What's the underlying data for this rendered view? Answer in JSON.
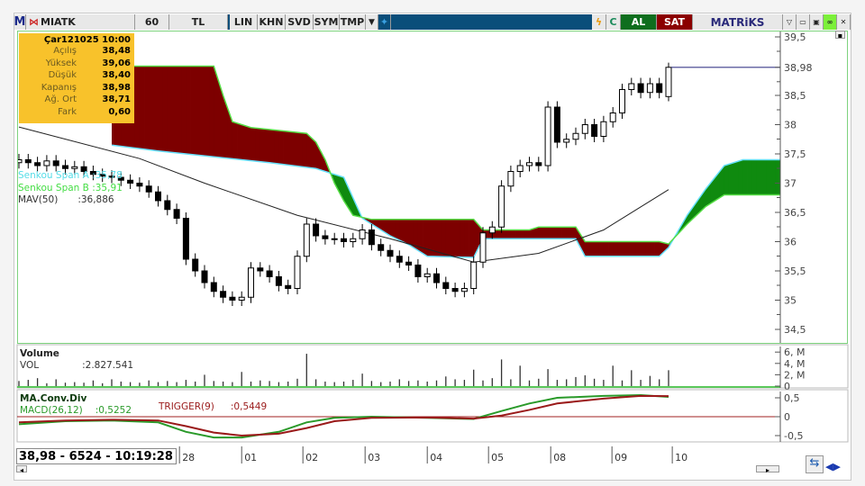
{
  "toolbar": {
    "logo": "M",
    "symbol": "MIATK",
    "period": "60",
    "currency": "TL",
    "buttons": [
      "LIN",
      "KHN",
      "SVD",
      "SYM",
      "TMP"
    ],
    "buy": "AL",
    "sell": "SAT",
    "brand": "MATRiKS",
    "colors": {
      "bar": "#0a4e7a",
      "buy": "#0e6e1e",
      "sell": "#8b0000"
    }
  },
  "info": {
    "date": "Çar121025 10:00",
    "rows": [
      {
        "k": "Açılış",
        "v": "38,48"
      },
      {
        "k": "Yüksek",
        "v": "39,06"
      },
      {
        "k": "Düşük",
        "v": "38,40"
      },
      {
        "k": "Kapanış",
        "v": "38,98"
      },
      {
        "k": "Ağ. Ort",
        "v": "38,71"
      },
      {
        "k": "Fark",
        "v": "0,60"
      }
    ]
  },
  "legend": {
    "span_a": "Senkou Span A",
    "span_a_val": ":35,78",
    "span_b": "Senkou Span B",
    "span_b_val": ":35,91",
    "mav": "MAV(50)",
    "mav_val": ":36,886"
  },
  "volume": {
    "title": "Volume",
    "label": "VOL",
    "value": ":2.827.541"
  },
  "macd": {
    "title": "MA.Conv.Div",
    "label": "MACD(26,12)",
    "value": ":0,5252",
    "trigger": "TRIGGER(9)",
    "trigger_val": ":0,5449"
  },
  "status": "38,98 - 6524 - 10:19:28",
  "chart_data": [
    {
      "type": "candlestick",
      "ylim": [
        34.3,
        39.65
      ],
      "y_ticks": [
        "39,5",
        "38,98",
        "38,5",
        "38",
        "37,5",
        "37",
        "36,5",
        "36",
        "35,5",
        "35",
        "34,5"
      ],
      "y_tick_values": [
        39.5,
        38.98,
        38.5,
        38,
        37.5,
        37,
        36.5,
        36,
        35.5,
        35,
        34.5
      ],
      "last_price": 38.98,
      "x_ticks": [
        {
          "label": "28",
          "index": 17.3
        },
        {
          "label": "01",
          "index": 24
        },
        {
          "label": "02",
          "index": 30.6
        },
        {
          "label": "03",
          "index": 37.3
        },
        {
          "label": "04",
          "index": 44
        },
        {
          "label": "05",
          "index": 50.6
        },
        {
          "label": "08",
          "index": 57.3
        },
        {
          "label": "09",
          "index": 63.9
        },
        {
          "label": "10",
          "index": 70.4
        }
      ],
      "open": [
        37.35,
        37.4,
        37.35,
        37.3,
        37.38,
        37.3,
        37.25,
        37.28,
        37.2,
        37.15,
        37.12,
        37.1,
        37.05,
        37.0,
        36.95,
        36.85,
        36.7,
        36.55,
        36.4,
        35.7,
        35.5,
        35.3,
        35.15,
        35.05,
        35.0,
        35.05,
        35.55,
        35.5,
        35.4,
        35.25,
        35.2,
        35.75,
        36.3,
        36.1,
        36.05,
        36.05,
        36.0,
        36.05,
        36.2,
        35.95,
        35.85,
        35.75,
        35.65,
        35.6,
        35.4,
        35.45,
        35.3,
        35.2,
        35.15,
        35.2,
        35.65,
        36.15,
        36.25,
        36.95,
        37.2,
        37.3,
        37.35,
        37.3,
        38.3,
        37.7,
        37.75,
        37.85,
        38.0,
        37.8,
        38.05,
        38.2,
        38.6,
        38.7,
        38.55,
        38.7,
        38.48
      ],
      "high": [
        37.5,
        37.5,
        37.45,
        37.48,
        37.48,
        37.4,
        37.38,
        37.38,
        37.3,
        37.25,
        37.22,
        37.2,
        37.15,
        37.1,
        37.05,
        36.95,
        36.8,
        36.65,
        36.5,
        35.8,
        35.6,
        35.4,
        35.25,
        35.15,
        35.15,
        35.65,
        35.65,
        35.6,
        35.5,
        35.35,
        35.85,
        36.4,
        36.4,
        36.2,
        36.15,
        36.15,
        36.15,
        36.3,
        36.3,
        36.05,
        35.95,
        35.85,
        35.75,
        35.7,
        35.55,
        35.55,
        35.4,
        35.3,
        35.3,
        35.75,
        36.25,
        36.35,
        37.05,
        37.3,
        37.4,
        37.45,
        37.45,
        38.4,
        38.4,
        37.85,
        37.95,
        38.1,
        38.1,
        38.15,
        38.3,
        38.7,
        38.8,
        38.8,
        38.8,
        38.8,
        39.06
      ],
      "low": [
        37.25,
        37.25,
        37.2,
        37.2,
        37.2,
        37.15,
        37.15,
        37.1,
        37.05,
        37.02,
        37.0,
        36.95,
        36.9,
        36.85,
        36.75,
        36.6,
        36.45,
        36.3,
        35.6,
        35.4,
        35.2,
        35.05,
        34.95,
        34.9,
        34.9,
        34.95,
        35.4,
        35.3,
        35.15,
        35.1,
        35.1,
        35.65,
        36.0,
        35.95,
        35.95,
        35.9,
        35.9,
        35.95,
        35.85,
        35.75,
        35.65,
        35.55,
        35.5,
        35.3,
        35.3,
        35.2,
        35.1,
        35.05,
        35.05,
        35.1,
        35.55,
        36.05,
        36.15,
        36.85,
        37.1,
        37.2,
        37.2,
        37.2,
        37.6,
        37.6,
        37.65,
        37.75,
        37.7,
        37.7,
        37.95,
        38.1,
        38.5,
        38.45,
        38.45,
        38.45,
        38.4
      ],
      "close": [
        37.4,
        37.35,
        37.3,
        37.38,
        37.3,
        37.25,
        37.28,
        37.2,
        37.15,
        37.12,
        37.1,
        37.05,
        37.0,
        36.95,
        36.85,
        36.7,
        36.55,
        36.4,
        35.7,
        35.5,
        35.3,
        35.15,
        35.05,
        35.0,
        35.05,
        35.55,
        35.5,
        35.4,
        35.25,
        35.2,
        35.75,
        36.3,
        36.1,
        36.05,
        36.05,
        36.0,
        36.05,
        36.2,
        35.95,
        35.85,
        35.75,
        35.65,
        35.6,
        35.4,
        35.45,
        35.3,
        35.2,
        35.15,
        35.2,
        35.65,
        36.15,
        36.25,
        36.95,
        37.2,
        37.3,
        37.35,
        37.3,
        38.3,
        37.7,
        37.75,
        37.85,
        38.0,
        37.8,
        38.05,
        38.2,
        38.6,
        38.7,
        38.55,
        38.7,
        38.55,
        38.98
      ],
      "senkou_span_a": [
        [
          10,
          37.65
        ],
        [
          15,
          37.55
        ],
        [
          21,
          37.45
        ],
        [
          27,
          37.35
        ],
        [
          32,
          37.25
        ],
        [
          35,
          37.1
        ],
        [
          37,
          36.4
        ],
        [
          40,
          36.1
        ],
        [
          42,
          35.95
        ],
        [
          44,
          35.75
        ],
        [
          49,
          35.73
        ],
        [
          50,
          36.05
        ],
        [
          60,
          36.05
        ],
        [
          61,
          35.75
        ],
        [
          69,
          35.75
        ],
        [
          70,
          35.9
        ],
        [
          72,
          36.45
        ],
        [
          74,
          36.9
        ],
        [
          76,
          37.3
        ],
        [
          78,
          37.4
        ],
        [
          83,
          37.4
        ]
      ],
      "senkou_span_b": [
        [
          10,
          39.0
        ],
        [
          21,
          39.0
        ],
        [
          22,
          38.5
        ],
        [
          23,
          38.05
        ],
        [
          25,
          37.95
        ],
        [
          31,
          37.85
        ],
        [
          32,
          37.7
        ],
        [
          33,
          37.4
        ],
        [
          34,
          37.0
        ],
        [
          35,
          36.7
        ],
        [
          36,
          36.45
        ],
        [
          38,
          36.38
        ],
        [
          49,
          36.38
        ],
        [
          50,
          36.2
        ],
        [
          55,
          36.2
        ],
        [
          56,
          36.25
        ],
        [
          60,
          36.25
        ],
        [
          61,
          36.0
        ],
        [
          69,
          36.0
        ],
        [
          70,
          35.96
        ],
        [
          72,
          36.3
        ],
        [
          74,
          36.6
        ],
        [
          76,
          36.8
        ],
        [
          83,
          36.8
        ]
      ],
      "mav50": [
        [
          0,
          37.96
        ],
        [
          13,
          37.42
        ],
        [
          20,
          37.0
        ],
        [
          30,
          36.45
        ],
        [
          40,
          36.05
        ],
        [
          49,
          35.65
        ],
        [
          56,
          35.8
        ],
        [
          63,
          36.2
        ],
        [
          70,
          36.89
        ]
      ],
      "colors": {
        "bear_cloud": "#7d0000",
        "bull_cloud": "#0f8a0f",
        "span_a": "#66e0ff",
        "span_b": "#55dd44",
        "mav": "#222222",
        "last_line": "#3a3a8a"
      }
    },
    {
      "type": "bar",
      "name": "VOL",
      "unit": "M",
      "ylim": [
        0,
        6.5
      ],
      "y_ticks": [
        "6, M",
        "4, M",
        "2, M",
        "0"
      ],
      "y_tick_values": [
        6,
        4,
        2,
        0
      ],
      "values": [
        0.9,
        1.1,
        1.4,
        0.5,
        1.2,
        0.6,
        0.7,
        0.6,
        1.0,
        0.5,
        1.2,
        0.8,
        0.7,
        0.6,
        1.0,
        0.7,
        0.9,
        0.7,
        1.1,
        0.8,
        2.0,
        0.9,
        0.8,
        0.7,
        2.5,
        0.8,
        1.0,
        0.9,
        0.7,
        0.8,
        1.3,
        5.7,
        1.2,
        0.8,
        0.7,
        0.8,
        1.1,
        2.2,
        0.9,
        0.7,
        0.8,
        1.2,
        0.9,
        1.0,
        0.8,
        1.0,
        1.7,
        1.2,
        1.1,
        2.9,
        1.0,
        1.4,
        4.7,
        1.2,
        3.6,
        1.0,
        1.3,
        3.0,
        1.1,
        1.2,
        1.6,
        1.9,
        1.3,
        1.1,
        3.6,
        1.0,
        2.8,
        1.1,
        1.8,
        1.2,
        2.8
      ]
    },
    {
      "type": "line",
      "ylim": [
        -0.65,
        0.65
      ],
      "y_ticks": [
        "0,5",
        "0",
        "-0,5"
      ],
      "y_tick_values": [
        0.5,
        0,
        -0.5
      ],
      "series": [
        {
          "name": "MACD(26,12)",
          "color": "#2a9a2a",
          "points": [
            [
              0,
              -0.2
            ],
            [
              5,
              -0.12
            ],
            [
              10,
              -0.1
            ],
            [
              15,
              -0.15
            ],
            [
              18,
              -0.4
            ],
            [
              21,
              -0.55
            ],
            [
              24,
              -0.55
            ],
            [
              28,
              -0.4
            ],
            [
              31,
              -0.15
            ],
            [
              34,
              -0.03
            ],
            [
              38,
              0.0
            ],
            [
              44,
              -0.03
            ],
            [
              49,
              -0.06
            ],
            [
              52,
              0.15
            ],
            [
              55,
              0.35
            ],
            [
              58,
              0.5
            ],
            [
              63,
              0.55
            ],
            [
              67,
              0.57
            ],
            [
              70,
              0.525
            ]
          ]
        },
        {
          "name": "TRIGGER(9)",
          "color": "#9a1a1a",
          "points": [
            [
              0,
              -0.15
            ],
            [
              5,
              -0.1
            ],
            [
              10,
              -0.08
            ],
            [
              15,
              -0.1
            ],
            [
              18,
              -0.25
            ],
            [
              21,
              -0.42
            ],
            [
              24,
              -0.5
            ],
            [
              28,
              -0.45
            ],
            [
              31,
              -0.3
            ],
            [
              34,
              -0.12
            ],
            [
              38,
              -0.03
            ],
            [
              44,
              -0.02
            ],
            [
              49,
              -0.05
            ],
            [
              52,
              0.03
            ],
            [
              55,
              0.18
            ],
            [
              58,
              0.35
            ],
            [
              63,
              0.48
            ],
            [
              67,
              0.55
            ],
            [
              70,
              0.545
            ]
          ]
        }
      ],
      "zero_line_color": "#a02020"
    }
  ]
}
